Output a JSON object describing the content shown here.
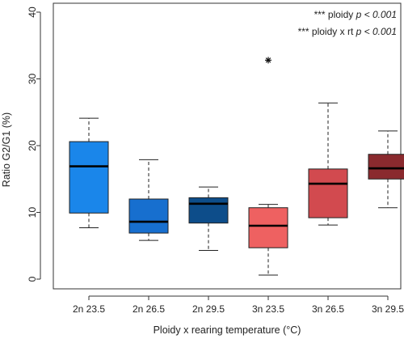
{
  "chart_data": {
    "type": "boxplot",
    "xlabel": "Ploidy x rearing temperature (°C)",
    "ylabel": "Ratio G2/G1 (%)",
    "ylim": [
      0,
      40
    ],
    "yticks": [
      0,
      10,
      20,
      30,
      40
    ],
    "categories": [
      "2n 23.5",
      "2n 26.5",
      "2n 29.5",
      "3n 23.5",
      "3n 26.5",
      "3n 29.5"
    ],
    "boxes": [
      {
        "category": "2n 23.5",
        "whisker_low": 7.7,
        "q1": 9.9,
        "median": 16.9,
        "q3": 20.6,
        "whisker_high": 24.1,
        "color": "#1a86ea"
      },
      {
        "category": "2n 26.5",
        "whisker_low": 5.8,
        "q1": 6.9,
        "median": 8.6,
        "q3": 12.0,
        "whisker_high": 17.9,
        "color": "#176fcf"
      },
      {
        "category": "2n 29.5",
        "whisker_low": 4.3,
        "q1": 8.4,
        "median": 11.3,
        "q3": 12.2,
        "whisker_high": 13.8,
        "color": "#0d4d8a"
      },
      {
        "category": "3n 23.5",
        "whisker_low": 0.6,
        "q1": 4.7,
        "median": 8.0,
        "q3": 10.7,
        "whisker_high": 11.2,
        "color": "#ee6161"
      },
      {
        "category": "3n 26.5",
        "whisker_low": 8.1,
        "q1": 9.2,
        "median": 14.3,
        "q3": 16.5,
        "whisker_high": 26.4,
        "color": "#d24a4f"
      },
      {
        "category": "3n 29.5",
        "whisker_low": 10.7,
        "q1": 15.0,
        "median": 16.6,
        "q3": 18.7,
        "whisker_high": 22.2,
        "color": "#8a2a2e"
      }
    ],
    "outliers": [
      {
        "category": "3n 23.5",
        "value": 32.8
      }
    ],
    "annotations": [
      {
        "label": "*** ploidy",
        "p": "p < 0.001"
      },
      {
        "label": "*** ploidy x rt",
        "p": "p < 0.001"
      }
    ]
  }
}
